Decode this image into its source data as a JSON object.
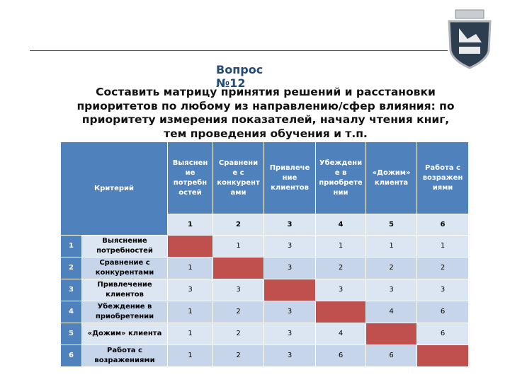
{
  "heading": "Вопрос №12",
  "title_lines": [
    "Составить матрицу принятия решений и расстановки",
    "приоритетов по любому из направлению/сфер влияния: по",
    "приоритету измерения показателей, началу чтения книг,",
    "тем проведения обучения и т.п."
  ],
  "table": {
    "corner": "Критерий",
    "columns": [
      [
        "Выяснен",
        "ие",
        "потребн",
        "остей"
      ],
      [
        "Сравнени",
        "е с",
        "конкурент",
        "ами"
      ],
      [
        "Привлече",
        "ние",
        "клиентов"
      ],
      [
        "Убеждени",
        "е в",
        "приобрете",
        "нии"
      ],
      [
        "«Дожим»",
        "клиента"
      ],
      [
        "Работа с",
        "возражен",
        "иями"
      ]
    ],
    "column_numbers": [
      1,
      2,
      3,
      4,
      5,
      6
    ],
    "rows": [
      {
        "number": 1,
        "label": "Выяснение потребностей",
        "cells": [
          null,
          1,
          3,
          1,
          1,
          1
        ]
      },
      {
        "number": 2,
        "label": "Сравнение с конкурентами",
        "cells": [
          1,
          null,
          3,
          2,
          2,
          2
        ]
      },
      {
        "number": 3,
        "label": "Привлечение клиентов",
        "cells": [
          3,
          3,
          null,
          3,
          3,
          3
        ]
      },
      {
        "number": 4,
        "label": "Убеждение в приобретении",
        "cells": [
          1,
          2,
          3,
          null,
          4,
          6
        ]
      },
      {
        "number": 5,
        "label": "«Дожим» клиента",
        "cells": [
          1,
          2,
          3,
          4,
          null,
          6
        ]
      },
      {
        "number": 6,
        "label": "Работа с возражениями",
        "cells": [
          1,
          2,
          3,
          6,
          6,
          null
        ]
      }
    ]
  }
}
